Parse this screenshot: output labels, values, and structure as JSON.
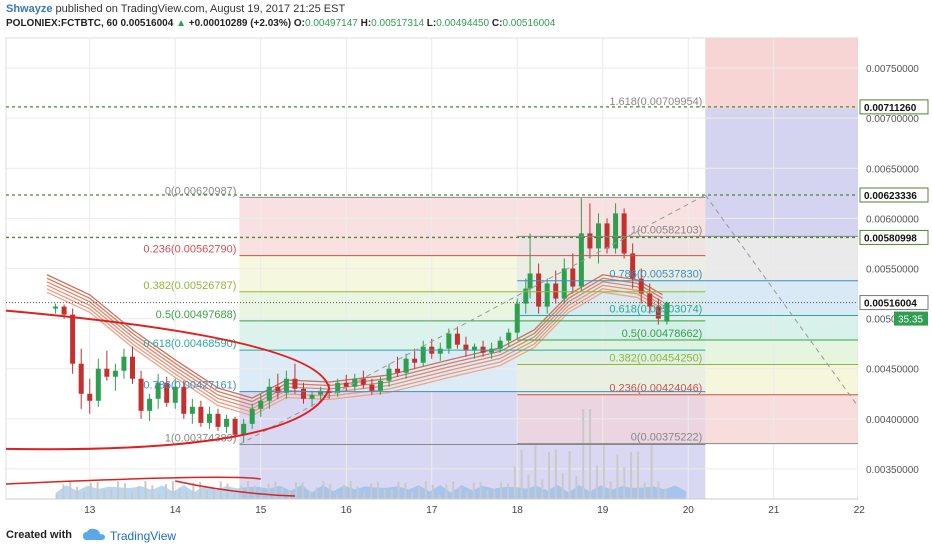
{
  "header": {
    "author": "Shwayze",
    "published_text": " published on TradingView.com, August 19, 2017 21:25 EST",
    "symbol": "POLONIEX:FCTBTC, 60",
    "last": "0.00516004",
    "change": "+0.00010289 (+2.03%)",
    "open_label": "O:",
    "open": "0.00497147",
    "high_label": "H:",
    "high": "0.00517314",
    "low_label": "L:",
    "low": "0.00494450",
    "close_label": "C:",
    "close": "0.00516004"
  },
  "footer": {
    "created_with": "Created with",
    "brand": "TradingView"
  },
  "colors": {
    "up": "#2e9e4f",
    "down": "#c23030",
    "accent": "#1e6fb3"
  },
  "chart_data": {
    "type": "candlestick",
    "x_axis": {
      "ticks": [
        "13",
        "14",
        "15",
        "16",
        "17",
        "18",
        "19",
        "20",
        "21",
        "22"
      ]
    },
    "y_axis": {
      "range": [
        0.0032,
        0.0078
      ],
      "ticks": [
        "0.00750000",
        "0.00700000",
        "0.00650000",
        "0.00600000",
        "0.00550000",
        "0.00500000",
        "0.00450000",
        "0.00400000",
        "0.00350000"
      ]
    },
    "price_labels": [
      {
        "text": "0.00711260",
        "value": 0.0071126,
        "style": "dashed"
      },
      {
        "text": "0.00623336",
        "value": 0.00623336,
        "style": "dashed"
      },
      {
        "text": "0.00580998",
        "value": 0.00580998,
        "style": "dashed"
      },
      {
        "text": "0.00516004",
        "value": 0.00516004,
        "style": "current"
      }
    ],
    "countdown": "35:35",
    "fib_retracement_1": [
      {
        "text": "1(0.00374389)",
        "ratio": "1",
        "value": 0.00374389,
        "color": "#888888"
      },
      {
        "text": "0.786(0.00427161)",
        "ratio": "0.786",
        "value": 0.00427161,
        "color": "#3b8fc4"
      },
      {
        "text": "0.618(0.00468590)",
        "ratio": "0.618",
        "value": 0.0046859,
        "color": "#2aa89e"
      },
      {
        "text": "0.5(0.00497688)",
        "ratio": "0.5",
        "value": 0.00497688,
        "color": "#3aa04a"
      },
      {
        "text": "0.382(0.00526787)",
        "ratio": "0.382",
        "value": 0.00526787,
        "color": "#8fb83a"
      },
      {
        "text": "0.236(0.00562790)",
        "ratio": "0.236",
        "value": 0.0056279,
        "color": "#d05050"
      },
      {
        "text": "0(0.00620987)",
        "ratio": "0",
        "value": 0.00620987,
        "color": "#888888"
      }
    ],
    "fib_retracement_2": [
      {
        "text": "0(0.00375222)",
        "ratio": "0",
        "value": 0.00375222,
        "color": "#888888"
      },
      {
        "text": "0.236(0.00424046)",
        "ratio": "0.236",
        "value": 0.00424046,
        "color": "#d05050"
      },
      {
        "text": "0.382(0.00454250)",
        "ratio": "0.382",
        "value": 0.0045425,
        "color": "#8fb83a"
      },
      {
        "text": "0.5(0.00478662)",
        "ratio": "0.5",
        "value": 0.00478662,
        "color": "#3aa04a"
      },
      {
        "text": "0.618(0.00503074)",
        "ratio": "0.618",
        "value": 0.00503074,
        "color": "#2aa89e"
      },
      {
        "text": "0.786(0.00537830)",
        "ratio": "0.786",
        "value": 0.0053783,
        "color": "#3b8fc4"
      },
      {
        "text": "1(0.00582103)",
        "ratio": "1",
        "value": 0.00582103,
        "color": "#888888"
      },
      {
        "text": "1.618(0.00709954)",
        "ratio": "1.618",
        "value": 0.00709954,
        "color": "#888888"
      }
    ],
    "ohlc": [
      [
        "12.6",
        0.0051,
        0.00515,
        0.00505,
        0.00512
      ],
      [
        "12.7",
        0.00512,
        0.00514,
        0.005,
        0.00504
      ],
      [
        "12.8",
        0.00504,
        0.0051,
        0.00445,
        0.00455
      ],
      [
        "12.9",
        0.00455,
        0.0047,
        0.0041,
        0.00425
      ],
      [
        "13.0",
        0.00425,
        0.0044,
        0.00405,
        0.00418
      ],
      [
        "13.1",
        0.00418,
        0.0046,
        0.00412,
        0.0045
      ],
      [
        "13.2",
        0.0045,
        0.00468,
        0.00438,
        0.00442
      ],
      [
        "13.3",
        0.00442,
        0.00455,
        0.00428,
        0.00448
      ],
      [
        "13.4",
        0.00448,
        0.0047,
        0.0044,
        0.00462
      ],
      [
        "13.5",
        0.00462,
        0.00472,
        0.00435,
        0.0044
      ],
      [
        "13.6",
        0.0044,
        0.00448,
        0.004,
        0.00408
      ],
      [
        "13.7",
        0.00408,
        0.00425,
        0.00398,
        0.0042
      ],
      [
        "13.8",
        0.0042,
        0.00445,
        0.0041,
        0.00436
      ],
      [
        "13.9",
        0.00436,
        0.00442,
        0.00412,
        0.00416
      ],
      [
        "14.0",
        0.00416,
        0.0044,
        0.0041,
        0.00432
      ],
      [
        "14.1",
        0.00432,
        0.00438,
        0.004,
        0.00405
      ],
      [
        "14.2",
        0.00405,
        0.0042,
        0.00395,
        0.00412
      ],
      [
        "14.3",
        0.00412,
        0.00418,
        0.00392,
        0.00396
      ],
      [
        "14.4",
        0.00396,
        0.00412,
        0.0039,
        0.00405
      ],
      [
        "14.5",
        0.00405,
        0.0041,
        0.00388,
        0.00392
      ],
      [
        "14.6",
        0.00392,
        0.00404,
        0.00386,
        0.004
      ],
      [
        "14.7",
        0.004,
        0.00402,
        0.0038,
        0.00384
      ],
      [
        "14.8",
        0.00384,
        0.004,
        0.00376,
        0.00395
      ],
      [
        "14.9",
        0.00395,
        0.00415,
        0.0039,
        0.0041
      ],
      [
        "15.0",
        0.0041,
        0.00425,
        0.00402,
        0.00418
      ],
      [
        "15.1",
        0.00418,
        0.0044,
        0.0041,
        0.00432
      ],
      [
        "15.2",
        0.00432,
        0.00445,
        0.0042,
        0.00426
      ],
      [
        "15.3",
        0.00426,
        0.00448,
        0.0042,
        0.0044
      ],
      [
        "15.4",
        0.0044,
        0.00455,
        0.00425,
        0.0043
      ],
      [
        "15.5",
        0.0043,
        0.00436,
        0.00415,
        0.0042
      ],
      [
        "15.6",
        0.0042,
        0.00428,
        0.00412,
        0.00424
      ],
      [
        "15.7",
        0.00424,
        0.00432,
        0.00418,
        0.00428
      ],
      [
        "15.8",
        0.00428,
        0.00435,
        0.0042,
        0.00426
      ],
      [
        "15.9",
        0.00426,
        0.0044,
        0.00422,
        0.00436
      ],
      [
        "16.0",
        0.00436,
        0.00444,
        0.00428,
        0.00432
      ],
      [
        "16.1",
        0.00432,
        0.00445,
        0.00428,
        0.0044
      ],
      [
        "16.2",
        0.0044,
        0.00448,
        0.0043,
        0.00434
      ],
      [
        "16.3",
        0.00434,
        0.0044,
        0.00424,
        0.00428
      ],
      [
        "16.4",
        0.00428,
        0.00442,
        0.00424,
        0.00438
      ],
      [
        "16.5",
        0.00438,
        0.00455,
        0.00432,
        0.0045
      ],
      [
        "16.6",
        0.0045,
        0.00462,
        0.00442,
        0.00446
      ],
      [
        "16.7",
        0.00446,
        0.00465,
        0.0044,
        0.0046
      ],
      [
        "16.8",
        0.0046,
        0.0047,
        0.0045,
        0.00456
      ],
      [
        "16.9",
        0.00456,
        0.00478,
        0.00452,
        0.00472
      ],
      [
        "17.0",
        0.00472,
        0.0048,
        0.0046,
        0.00465
      ],
      [
        "17.1",
        0.00465,
        0.00476,
        0.00458,
        0.0047
      ],
      [
        "17.2",
        0.0047,
        0.0049,
        0.00465,
        0.00485
      ],
      [
        "17.3",
        0.00485,
        0.00492,
        0.0047,
        0.00474
      ],
      [
        "17.4",
        0.00474,
        0.00482,
        0.00462,
        0.00468
      ],
      [
        "17.5",
        0.00468,
        0.00475,
        0.0046,
        0.00472
      ],
      [
        "17.6",
        0.00472,
        0.00478,
        0.00462,
        0.00466
      ],
      [
        "17.7",
        0.00466,
        0.00476,
        0.0046,
        0.0047
      ],
      [
        "17.8",
        0.0047,
        0.00482,
        0.00466,
        0.00478
      ],
      [
        "17.9",
        0.00478,
        0.0049,
        0.00472,
        0.00486
      ],
      [
        "18.0",
        0.00486,
        0.0052,
        0.0048,
        0.00515
      ],
      [
        "18.1",
        0.00515,
        0.0054,
        0.00505,
        0.0053
      ],
      [
        "18.15",
        0.0053,
        0.00585,
        0.0052,
        0.00545
      ],
      [
        "18.25",
        0.00545,
        0.00555,
        0.00505,
        0.00512
      ],
      [
        "18.35",
        0.00512,
        0.0054,
        0.00505,
        0.00535
      ],
      [
        "18.45",
        0.00535,
        0.00548,
        0.00515,
        0.0052
      ],
      [
        "18.55",
        0.0052,
        0.0056,
        0.00515,
        0.0055
      ],
      [
        "18.65",
        0.0055,
        0.00565,
        0.00525,
        0.00532
      ],
      [
        "18.75",
        0.00532,
        0.0062,
        0.00528,
        0.00585
      ],
      [
        "18.85",
        0.00585,
        0.00615,
        0.0056,
        0.0057
      ],
      [
        "18.95",
        0.0057,
        0.00605,
        0.00555,
        0.00595
      ],
      [
        "19.05",
        0.00595,
        0.006,
        0.00565,
        0.0057
      ],
      [
        "19.15",
        0.0057,
        0.00615,
        0.00565,
        0.00605
      ],
      [
        "19.25",
        0.00605,
        0.0061,
        0.0056,
        0.00565
      ],
      [
        "19.35",
        0.00565,
        0.00575,
        0.0053,
        0.0054
      ],
      [
        "19.45",
        0.0054,
        0.0055,
        0.00515,
        0.00525
      ],
      [
        "19.55",
        0.00525,
        0.00535,
        0.00505,
        0.00512
      ],
      [
        "19.65",
        0.00512,
        0.0052,
        0.00494,
        0.005
      ],
      [
        "19.75",
        0.00497,
        0.00517,
        0.00494,
        0.00516
      ]
    ]
  }
}
